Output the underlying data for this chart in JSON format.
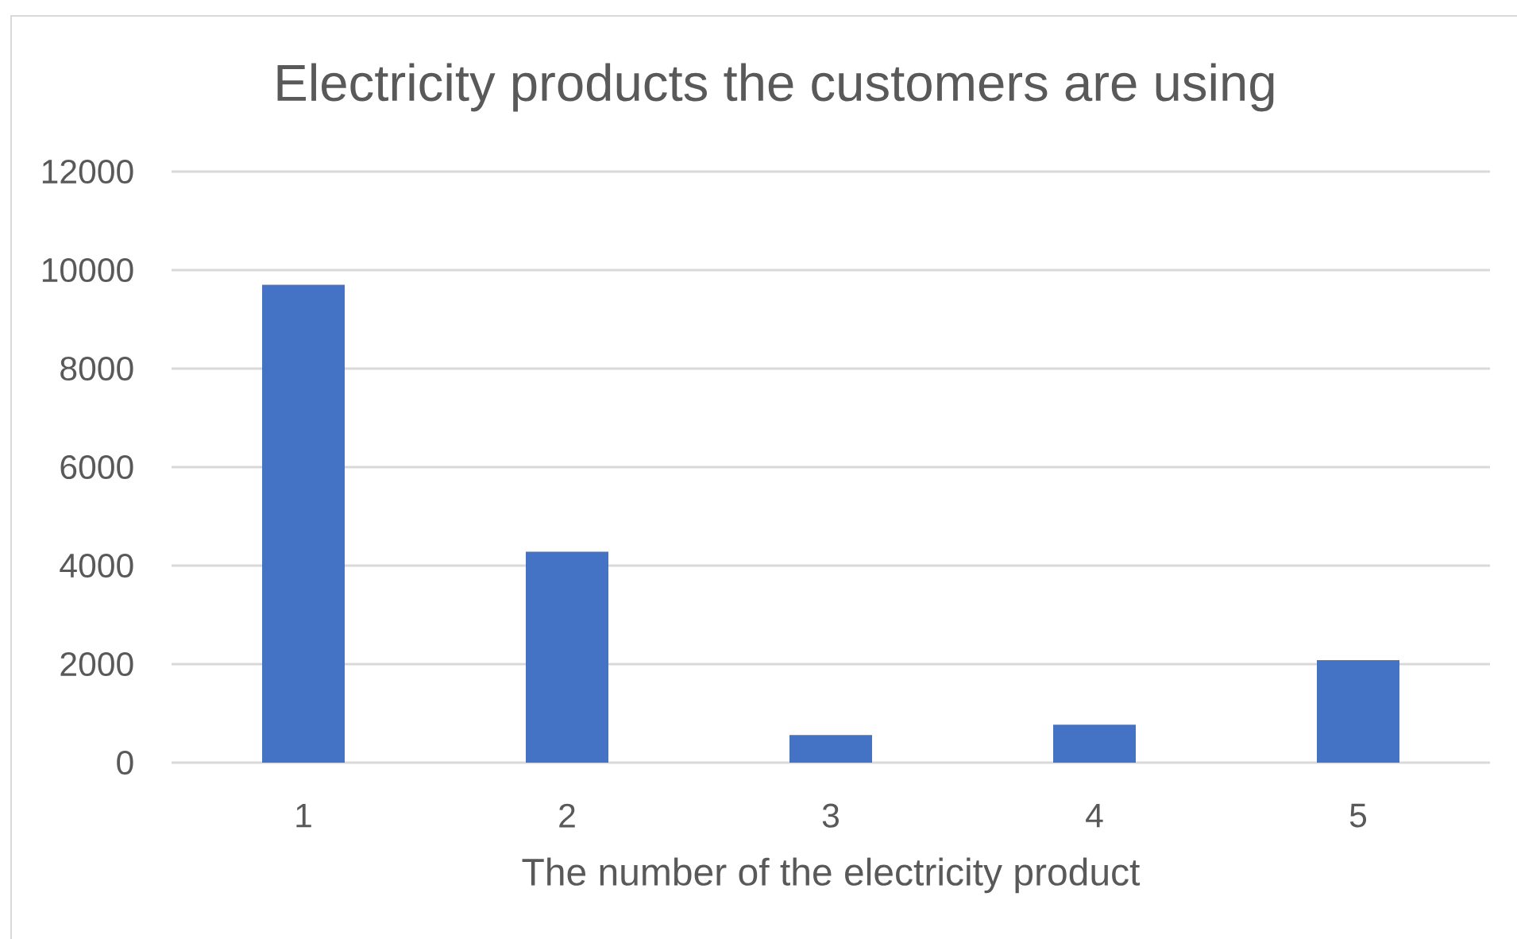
{
  "chart_data": {
    "type": "bar",
    "title": "Electricity products the customers are using",
    "xlabel": "The number of the electricity product",
    "categories": [
      "1",
      "2",
      "3",
      "4",
      "5"
    ],
    "values": [
      9700,
      4280,
      560,
      770,
      2080
    ],
    "color": "#4472c4",
    "ylim": [
      0,
      12000
    ],
    "yticks": [
      0,
      2000,
      4000,
      6000,
      8000,
      10000,
      12000
    ],
    "grid": "y"
  }
}
